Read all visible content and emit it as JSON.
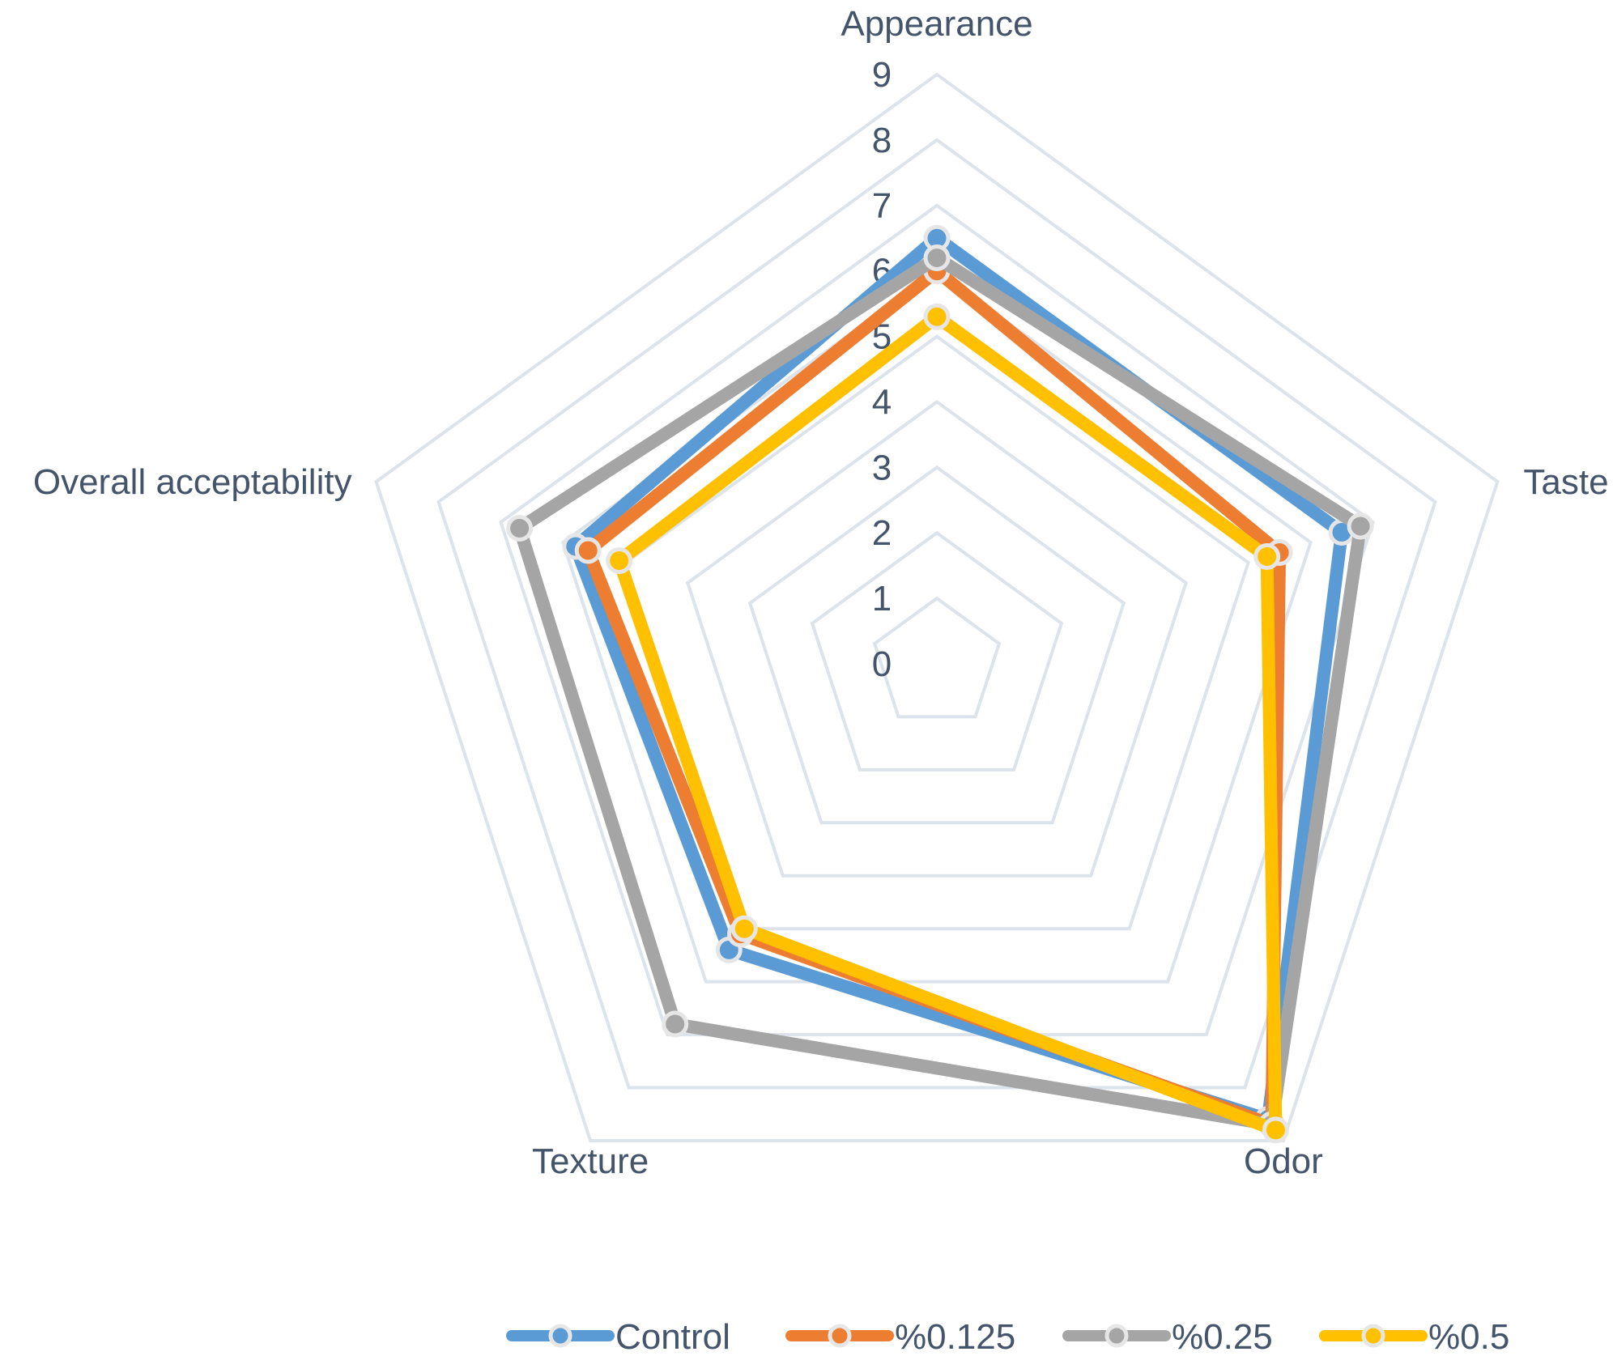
{
  "chart_data": {
    "type": "radar",
    "categories": [
      "Appearance",
      "Taste",
      "Odor",
      "Texture",
      "Overall acceptability"
    ],
    "rlim": [
      0,
      9
    ],
    "ticks": [
      "0",
      "1",
      "2",
      "3",
      "4",
      "5",
      "6",
      "7",
      "8",
      "9"
    ],
    "grid": true,
    "legend": "bottom",
    "series": [
      {
        "name": "Control",
        "color": "#5b9bd5",
        "values": [
          6.5,
          6.5,
          8.6,
          5.4,
          5.8
        ]
      },
      {
        "name": "%0.125",
        "color": "#ed7d31",
        "values": [
          6.0,
          5.5,
          8.7,
          5.1,
          5.6
        ]
      },
      {
        "name": "%0.25",
        "color": "#a5a5a5",
        "values": [
          6.2,
          6.8,
          8.7,
          6.8,
          6.7
        ]
      },
      {
        "name": "%0.5",
        "color": "#ffc000",
        "values": [
          5.3,
          5.3,
          8.8,
          5.0,
          5.1
        ]
      }
    ]
  }
}
